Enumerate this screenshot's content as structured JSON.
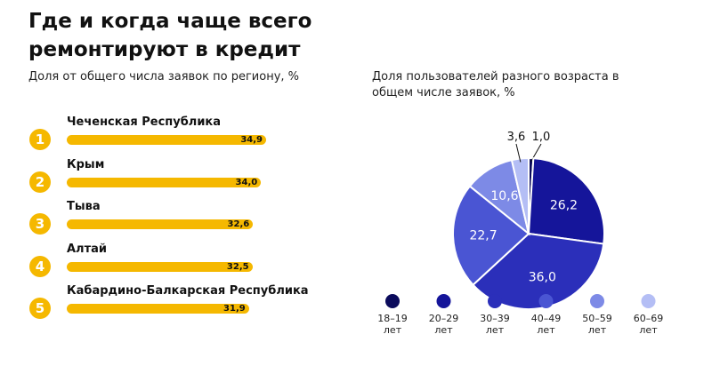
{
  "title": "Где и когда чаще всего ремонтируют в кредит",
  "chart_data": [
    {
      "type": "bar",
      "subtitle": "Доля от общего числа заявок по региону, %",
      "ranks": [
        "1",
        "2",
        "3",
        "4",
        "5"
      ],
      "categories": [
        "Чеченская Республика",
        "Крым",
        "Тыва",
        "Алтай",
        "Кабардино-Балкарская Республика"
      ],
      "values": [
        34.9,
        34.0,
        32.6,
        32.5,
        31.9
      ],
      "value_labels": [
        "34,9",
        "34,0",
        "32,6",
        "32,5",
        "31,9"
      ],
      "color": "#f5b800"
    },
    {
      "type": "pie",
      "subtitle": "Доля пользователей разного возраста в общем числе заявок, %",
      "categories": [
        "18–19 лет",
        "20–29 лет",
        "30–39 лет",
        "40–49 лет",
        "50–59 лет",
        "60–69 лет"
      ],
      "values": [
        1.0,
        26.2,
        36.0,
        22.7,
        10.6,
        3.6
      ],
      "value_labels": [
        "1,0",
        "26,2",
        "36,0",
        "22,7",
        "10,6",
        "3,6"
      ],
      "colors": [
        "#0b0b5c",
        "#15159a",
        "#2b2fba",
        "#4a55d3",
        "#7d8ae6",
        "#b4bef5"
      ]
    }
  ]
}
